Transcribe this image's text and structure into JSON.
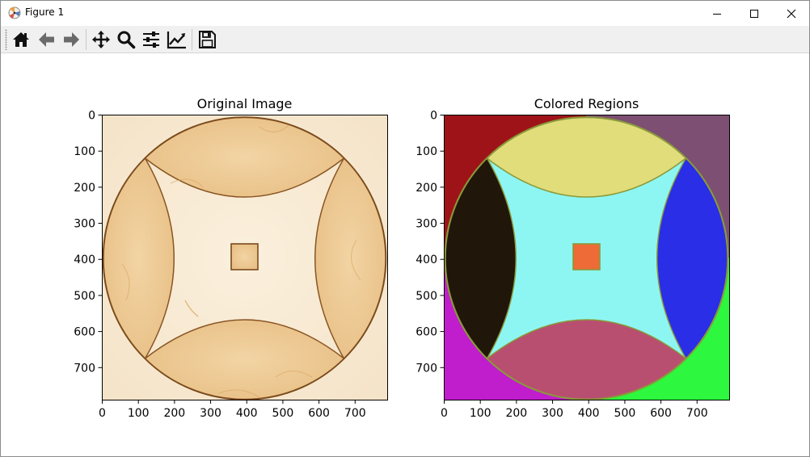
{
  "window": {
    "title": "Figure 1",
    "controls": {
      "minimize": "minimize",
      "maximize": "maximize",
      "close": "close"
    }
  },
  "toolbar": {
    "tools": [
      {
        "name": "home-icon"
      },
      {
        "name": "back-arrow-icon"
      },
      {
        "name": "forward-arrow-icon"
      },
      {
        "name": "pan-icon"
      },
      {
        "name": "zoom-icon"
      },
      {
        "name": "configure-subplots-icon"
      },
      {
        "name": "edit-axis-icon"
      },
      {
        "name": "save-icon"
      }
    ]
  },
  "figure": {
    "subplots": [
      {
        "title": "Original Image",
        "xticks": [
          "0",
          "100",
          "200",
          "300",
          "400",
          "500",
          "600",
          "700"
        ],
        "yticks": [
          "0",
          "100",
          "200",
          "300",
          "400",
          "500",
          "600",
          "700"
        ]
      },
      {
        "title": "Colored Regions",
        "xticks": [
          "0",
          "100",
          "200",
          "300",
          "400",
          "500",
          "600",
          "700"
        ],
        "yticks": [
          "0",
          "100",
          "200",
          "300",
          "400",
          "500",
          "600",
          "700"
        ],
        "region_colors": {
          "top_left": "#9e1318",
          "top_right": "#7d4f72",
          "bottom_left": "#c01dcc",
          "bottom_right": "#2df73e",
          "top_lens": "#e0dd7a",
          "left_lens": "#21160a",
          "right_lens": "#2a2ee6",
          "bottom_lens": "#b84f70",
          "center": "#8ef6f2",
          "square": "#ee6b38"
        }
      }
    ],
    "tick_values": [
      0,
      100,
      200,
      300,
      400,
      500,
      600,
      700
    ],
    "image_extent": [
      0,
      790
    ]
  }
}
